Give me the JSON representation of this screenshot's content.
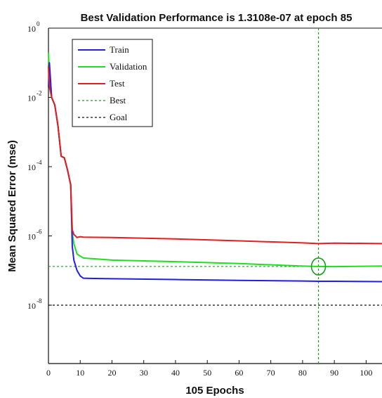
{
  "chart_data": {
    "type": "line",
    "title": "Best Validation Performance is 1.3108e-07 at epoch 85",
    "xlabel": "105 Epochs",
    "ylabel": "Mean Squared Error  (mse)",
    "xlim": [
      0,
      105
    ],
    "ylim_log10": [
      -9,
      0
    ],
    "yscale": "log",
    "x_ticks": [
      0,
      10,
      20,
      30,
      40,
      50,
      60,
      70,
      80,
      90,
      100
    ],
    "y_tick_exponents": [
      0,
      -2,
      -4,
      -6,
      -8
    ],
    "grid": false,
    "legend_position": "top-left",
    "series": [
      {
        "name": "Train",
        "color": "#1f1fe6",
        "style": "solid",
        "points": [
          [
            0,
            0.02
          ],
          [
            0.3,
            0.1
          ],
          [
            1,
            0.01
          ],
          [
            2,
            0.006
          ],
          [
            3,
            0.0015
          ],
          [
            4,
            0.0002
          ],
          [
            5,
            0.00018
          ],
          [
            6,
            8e-05
          ],
          [
            7,
            3e-05
          ],
          [
            7.5,
            5e-07
          ],
          [
            8,
            2e-07
          ],
          [
            9,
            1e-07
          ],
          [
            10,
            7e-08
          ],
          [
            11,
            6e-08
          ],
          [
            20,
            5.8e-08
          ],
          [
            40,
            5.5e-08
          ],
          [
            60,
            5.2e-08
          ],
          [
            80,
            5e-08
          ],
          [
            85,
            4.9e-08
          ],
          [
            90,
            4.9e-08
          ],
          [
            105,
            4.8e-08
          ]
        ]
      },
      {
        "name": "Validation",
        "color": "#1ee01e",
        "style": "solid",
        "points": [
          [
            0,
            0.2
          ],
          [
            0.3,
            0.05
          ],
          [
            1,
            0.01
          ],
          [
            2,
            0.006
          ],
          [
            3,
            0.0015
          ],
          [
            4,
            0.0002
          ],
          [
            5,
            0.00018
          ],
          [
            6,
            8e-05
          ],
          [
            7,
            3e-05
          ],
          [
            7.5,
            1.2e-06
          ],
          [
            8,
            6e-07
          ],
          [
            9,
            3e-07
          ],
          [
            11,
            2.3e-07
          ],
          [
            20,
            2e-07
          ],
          [
            40,
            1.8e-07
          ],
          [
            60,
            1.6e-07
          ],
          [
            75,
            1.4e-07
          ],
          [
            80,
            1.35e-07
          ],
          [
            85,
            1.3108e-07
          ],
          [
            90,
            1.3e-07
          ],
          [
            105,
            1.35e-07
          ]
        ]
      },
      {
        "name": "Test",
        "color": "#e61e1e",
        "style": "solid",
        "points": [
          [
            0,
            0.08
          ],
          [
            0.3,
            0.02
          ],
          [
            1,
            0.01
          ],
          [
            2,
            0.006
          ],
          [
            3,
            0.0015
          ],
          [
            4,
            0.0002
          ],
          [
            5,
            0.00018
          ],
          [
            6,
            8e-05
          ],
          [
            7,
            3e-05
          ],
          [
            7.5,
            1.5e-06
          ],
          [
            8,
            1.1e-06
          ],
          [
            9,
            9e-07
          ],
          [
            10,
            9.5e-07
          ],
          [
            11,
            9.2e-07
          ],
          [
            20,
            9e-07
          ],
          [
            40,
            8.2e-07
          ],
          [
            60,
            7.2e-07
          ],
          [
            80,
            6.3e-07
          ],
          [
            85,
            6e-07
          ],
          [
            90,
            6.2e-07
          ],
          [
            105,
            6e-07
          ]
        ]
      },
      {
        "name": "Best",
        "color": "#1a9e1a",
        "style": "dotted",
        "type": "reference",
        "x_value": 85,
        "y_value": 1.3108e-07
      },
      {
        "name": "Goal",
        "color": "#111111",
        "style": "dotted",
        "type": "reference",
        "y_value": 1e-08
      }
    ],
    "best_marker": {
      "x": 85,
      "y": 1.3108e-07,
      "shape": "circle",
      "color": "#1a9e1a"
    }
  }
}
